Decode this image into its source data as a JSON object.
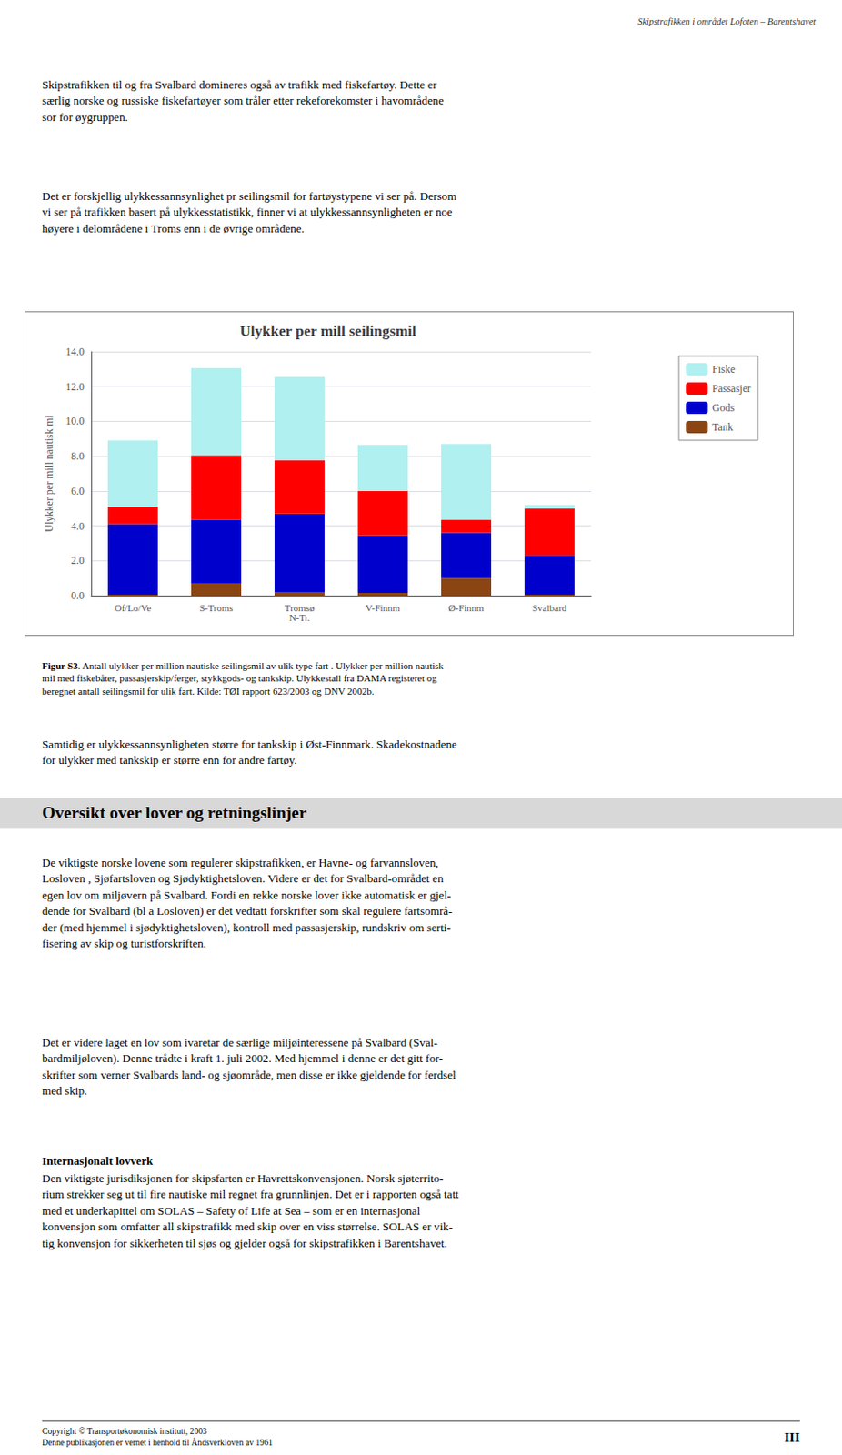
{
  "chart_data": {
    "type": "bar",
    "stacked": true,
    "title": "Ulykker per mill seilingsmil",
    "ylabel": "Ulykker per mill nautisk mi",
    "categories": [
      "Of/Lo/Ve",
      "S-Troms",
      "Tromsø\nN-Tr.",
      "V-Finnm",
      "Ø-Finnm",
      "Svalbard"
    ],
    "series": [
      {
        "name": "Tank",
        "color": "#8B4513",
        "values": [
          0.05,
          0.7,
          0.2,
          0.15,
          1.0,
          0.05
        ]
      },
      {
        "name": "Gods",
        "color": "#0000CD",
        "values": [
          4.05,
          3.65,
          4.5,
          3.3,
          2.6,
          2.25
        ]
      },
      {
        "name": "Passasjer",
        "color": "#FF0000",
        "values": [
          1.0,
          3.7,
          3.05,
          2.55,
          0.75,
          2.7
        ]
      },
      {
        "name": "Fiske",
        "color": "#B0F0F0",
        "values": [
          3.8,
          5.0,
          4.8,
          2.65,
          4.35,
          0.2
        ]
      }
    ],
    "ylim": [
      0,
      14.0
    ],
    "yticks": [
      {
        "value": 0,
        "label": "0.0"
      },
      {
        "value": 2,
        "label": "2.0"
      },
      {
        "value": 4,
        "label": "4.0"
      },
      {
        "value": 6,
        "label": "6.0"
      },
      {
        "value": 8,
        "label": "8.0"
      },
      {
        "value": 10,
        "label": "10.0"
      },
      {
        "value": 12,
        "label": "12.0"
      },
      {
        "value": 14,
        "label": "14.0"
      }
    ],
    "grid": true,
    "legend": "right",
    "annotations": [
      "Skipstrafikken i området Lofoten – Barentshavet",
      "Skipstrafikken til og fra Svalbard domineres også av trafikk med fiskefartøy. Dette er\nsærlig norske og russiske fiskefartøyer som tråler etter rekeforekomster i havområdene\nsor for øygruppen.",
      "Det er forskjellig ulykkessannsynlighet pr seilingsmil for fartøystypene vi ser på. Dersom\nvi ser på trafikken basert på ulykkesstatistikk, finner vi at ulykkessannsynligheten er noe\nhøyere i delområdene i Troms enn i de øvrige områdene.",
      "Figur S3",
      ". Antall ulykker per million nautiske seilingsmil av ulik type fart . Ulykker per million nautisk\nmil med fiskebåter, passasjerskip/ferger, stykkgods- og tankskip. Ulykkestall fra DAMA registeret og\nberegnet antall seilingsmil for ulik fart. Kilde: TØI rapport 623/2003 og DNV 2002b.",
      "Samtidig er ulykkessannsynligheten større for tankskip i Øst-Finnmark. Skadekostnadene\nfor ulykker med tankskip er større enn for andre fartøy.",
      "Oversikt over lover og retningslinjer",
      "De viktigste norske lovene som regulerer skipstrafikken, er Havne- og farvannsloven,\nLosloven , Sjøfartsloven og Sjødyktighetsloven. Videre er det for Svalbard-området en\negen lov om miljøvern på Svalbard. Fordi en rekke norske lover ikke automatisk er gjel-\ndende for Svalbard (bl a Losloven) er det vedtatt forskrifter som skal regulere fartsområ-\nder (med hjemmel i sjødyktighetsloven), kontroll med passasjerskip, rundskriv om serti-\nfisering av skip og turistforskriften.",
      "Det er videre laget en lov som ivaretar de særlige miljøinteressene på Svalbard (Sval-\nbardmiljøloven). Denne trådte i kraft 1. juli 2002. Med hjemmel i denne er det gitt for-\nskrifter som verner Svalbards land- og sjøområde, men disse er ikke gjeldende for ferdsel\nmed skip.",
      "Internasjonalt lovverk",
      "Den viktigste jurisdiksjonen for skipsfarten er Havrettskonvensjonen. Norsk sjøterrito-\nrium strekker seg ut til fire nautiske mil regnet fra grunnlinjen. Det er i rapporten også tatt\nmed et underkapittel om SOLAS – Safety of Life at Sea – som er en internasjonal\nkonvensjon som omfatter all skipstrafikk med skip over en viss størrelse. SOLAS er vik-\ntig konvensjon for sikkerheten til sjøs og gjelder også for skipstrafikken i Barentshavet.",
      "Copyright © Transportøkonomisk institutt, 2003",
      "Denne publikasjonen er vernet i henhold til Åndsverkloven av 1961",
      "III"
    ]
  }
}
